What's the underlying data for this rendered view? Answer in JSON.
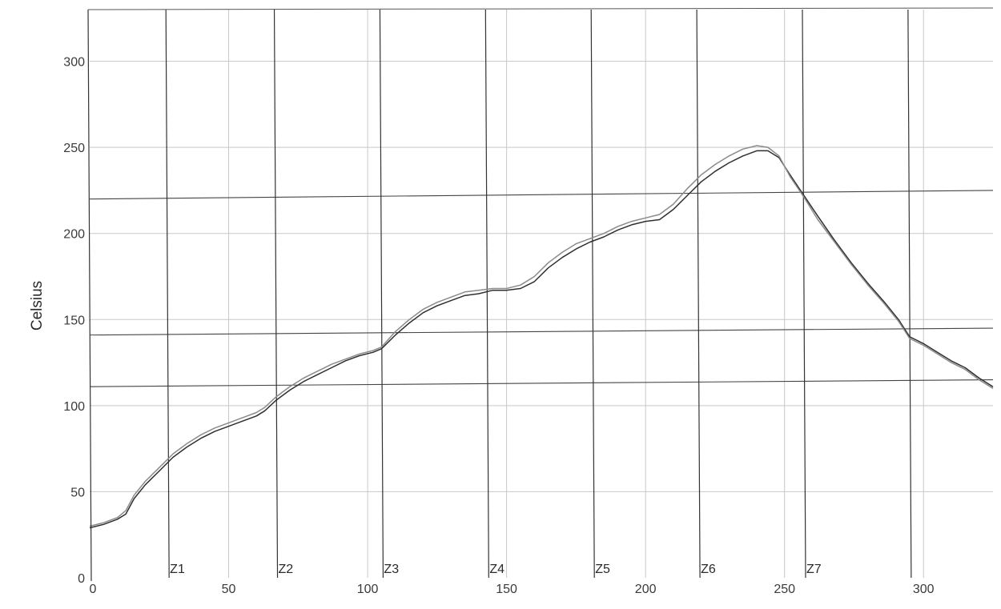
{
  "chart_data": {
    "type": "line",
    "ylabel": "Celsius",
    "xlabel": "",
    "xlim": [
      0,
      325
    ],
    "ylim": [
      0,
      330
    ],
    "x_ticks": [
      0,
      50,
      100,
      150,
      200,
      250,
      300
    ],
    "y_ticks": [
      0,
      50,
      100,
      150,
      200,
      250,
      300
    ],
    "grid": true,
    "zones": [
      {
        "label": "Z1",
        "x": 28
      },
      {
        "label": "Z2",
        "x": 67
      },
      {
        "label": "Z3",
        "x": 105
      },
      {
        "label": "Z4",
        "x": 143
      },
      {
        "label": "Z5",
        "x": 181
      },
      {
        "label": "Z6",
        "x": 219
      },
      {
        "label": "Z7",
        "x": 257
      },
      {
        "label": "",
        "x": 295
      }
    ],
    "limit_lines": [
      {
        "y_start": 220,
        "y_end": 225
      },
      {
        "y_start": 141,
        "y_end": 145
      },
      {
        "y_start": 111,
        "y_end": 115
      }
    ],
    "series": [
      {
        "color": "#2f2f2f",
        "points": [
          [
            0,
            29
          ],
          [
            5,
            31
          ],
          [
            10,
            34
          ],
          [
            13,
            37
          ],
          [
            16,
            46
          ],
          [
            20,
            54
          ],
          [
            25,
            62
          ],
          [
            30,
            70
          ],
          [
            35,
            76
          ],
          [
            40,
            81
          ],
          [
            45,
            85
          ],
          [
            50,
            88
          ],
          [
            55,
            91
          ],
          [
            60,
            94
          ],
          [
            63,
            97
          ],
          [
            67,
            103
          ],
          [
            72,
            109
          ],
          [
            77,
            114
          ],
          [
            82,
            118
          ],
          [
            87,
            122
          ],
          [
            92,
            126
          ],
          [
            97,
            129
          ],
          [
            102,
            131
          ],
          [
            105,
            133
          ],
          [
            110,
            141
          ],
          [
            115,
            148
          ],
          [
            120,
            154
          ],
          [
            125,
            158
          ],
          [
            130,
            161
          ],
          [
            135,
            164
          ],
          [
            140,
            165
          ],
          [
            145,
            167
          ],
          [
            150,
            167
          ],
          [
            155,
            168
          ],
          [
            160,
            172
          ],
          [
            165,
            180
          ],
          [
            170,
            186
          ],
          [
            175,
            191
          ],
          [
            180,
            195
          ],
          [
            185,
            198
          ],
          [
            190,
            202
          ],
          [
            195,
            205
          ],
          [
            200,
            207
          ],
          [
            205,
            208
          ],
          [
            210,
            214
          ],
          [
            215,
            222
          ],
          [
            220,
            230
          ],
          [
            225,
            236
          ],
          [
            230,
            241
          ],
          [
            235,
            245
          ],
          [
            240,
            248
          ],
          [
            244,
            248
          ],
          [
            248,
            244
          ],
          [
            252,
            234
          ],
          [
            257,
            222
          ],
          [
            262,
            210
          ],
          [
            268,
            196
          ],
          [
            274,
            183
          ],
          [
            280,
            171
          ],
          [
            286,
            160
          ],
          [
            291,
            150
          ],
          [
            295,
            140
          ],
          [
            300,
            136
          ],
          [
            305,
            131
          ],
          [
            310,
            126
          ],
          [
            315,
            122
          ],
          [
            320,
            116
          ],
          [
            325,
            111
          ]
        ]
      },
      {
        "color": "#8a8a8a",
        "points": [
          [
            0,
            30
          ],
          [
            5,
            32
          ],
          [
            10,
            35
          ],
          [
            13,
            39
          ],
          [
            16,
            48
          ],
          [
            20,
            56
          ],
          [
            25,
            64
          ],
          [
            30,
            72
          ],
          [
            35,
            78
          ],
          [
            40,
            83
          ],
          [
            45,
            87
          ],
          [
            50,
            90
          ],
          [
            55,
            93
          ],
          [
            60,
            96
          ],
          [
            63,
            99
          ],
          [
            67,
            105
          ],
          [
            72,
            111
          ],
          [
            77,
            116
          ],
          [
            82,
            120
          ],
          [
            87,
            124
          ],
          [
            92,
            127
          ],
          [
            97,
            130
          ],
          [
            102,
            132
          ],
          [
            105,
            134
          ],
          [
            110,
            143
          ],
          [
            115,
            150
          ],
          [
            120,
            156
          ],
          [
            125,
            160
          ],
          [
            130,
            163
          ],
          [
            135,
            166
          ],
          [
            140,
            167
          ],
          [
            145,
            168
          ],
          [
            150,
            168
          ],
          [
            155,
            170
          ],
          [
            160,
            175
          ],
          [
            165,
            183
          ],
          [
            170,
            189
          ],
          [
            175,
            194
          ],
          [
            180,
            197
          ],
          [
            185,
            200
          ],
          [
            190,
            204
          ],
          [
            195,
            207
          ],
          [
            200,
            209
          ],
          [
            205,
            211
          ],
          [
            210,
            217
          ],
          [
            215,
            226
          ],
          [
            220,
            234
          ],
          [
            225,
            240
          ],
          [
            230,
            245
          ],
          [
            235,
            249
          ],
          [
            240,
            251
          ],
          [
            244,
            250
          ],
          [
            248,
            245
          ],
          [
            252,
            233
          ],
          [
            257,
            221
          ],
          [
            262,
            208
          ],
          [
            268,
            195
          ],
          [
            274,
            182
          ],
          [
            280,
            170
          ],
          [
            286,
            159
          ],
          [
            291,
            149
          ],
          [
            295,
            139
          ],
          [
            300,
            135
          ],
          [
            305,
            130
          ],
          [
            310,
            125
          ],
          [
            315,
            121
          ],
          [
            320,
            115
          ],
          [
            325,
            110
          ]
        ]
      }
    ]
  }
}
